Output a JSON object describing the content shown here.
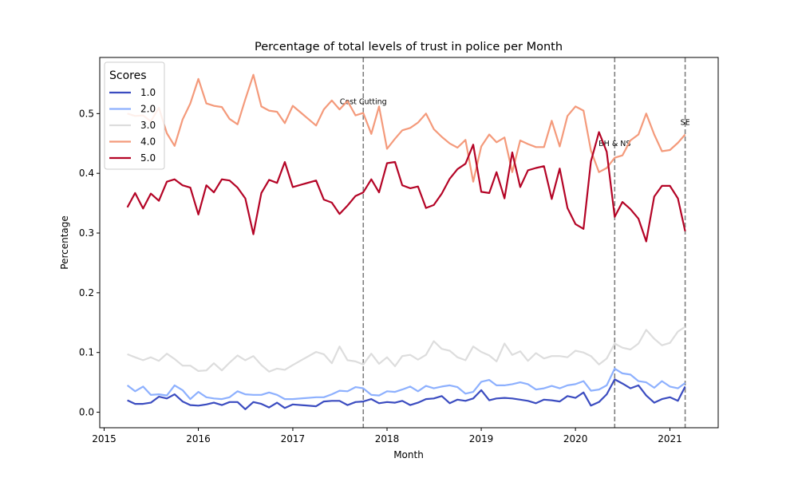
{
  "chart_data": {
    "type": "line",
    "title": "Percentage of total levels of trust in police per Month",
    "xlabel": "Month",
    "ylabel": "Percentage",
    "x_axis_kind": "date",
    "xlim": [
      "2014-12-15",
      "2021-07-07"
    ],
    "ylim": [
      -0.026,
      0.594
    ],
    "x_ticks": [
      {
        "date": "2015-01-01",
        "label": "2015"
      },
      {
        "date": "2016-01-01",
        "label": "2016"
      },
      {
        "date": "2017-01-01",
        "label": "2017"
      },
      {
        "date": "2018-01-01",
        "label": "2018"
      },
      {
        "date": "2019-01-01",
        "label": "2019"
      },
      {
        "date": "2020-01-01",
        "label": "2020"
      },
      {
        "date": "2021-01-01",
        "label": "2021"
      }
    ],
    "y_ticks": [
      {
        "value": 0.0,
        "label": "0.0"
      },
      {
        "value": 0.1,
        "label": "0.1"
      },
      {
        "value": 0.2,
        "label": "0.2"
      },
      {
        "value": 0.3,
        "label": "0.3"
      },
      {
        "value": 0.4,
        "label": "0.4"
      },
      {
        "value": 0.5,
        "label": "0.5"
      }
    ],
    "grid": false,
    "legend": {
      "title": "Scores",
      "placement": "upper-left"
    },
    "annotations": [
      {
        "date": "2017-10-01",
        "label": "Cost Cutting",
        "y": 0.52
      },
      {
        "date": "2020-06-01",
        "label": "BH & NS",
        "y": 0.45
      },
      {
        "date": "2021-03-01",
        "label": "SE",
        "y": 0.485
      }
    ],
    "x": [
      "2015-04",
      "2015-05",
      "2015-06",
      "2015-07",
      "2015-08",
      "2015-09",
      "2015-10",
      "2015-11",
      "2015-12",
      "2016-01",
      "2016-02",
      "2016-03",
      "2016-04",
      "2016-05",
      "2016-06",
      "2016-07",
      "2016-08",
      "2016-09",
      "2016-10",
      "2016-11",
      "2016-12",
      "2017-01",
      "2017-02",
      "2017-03",
      "2017-04",
      "2017-05",
      "2017-06",
      "2017-07",
      "2017-08",
      "2017-09",
      "2017-10",
      "2017-11",
      "2017-12",
      "2018-01",
      "2018-02",
      "2018-03",
      "2018-04",
      "2018-05",
      "2018-06",
      "2018-07",
      "2018-08",
      "2018-09",
      "2018-10",
      "2018-11",
      "2018-12",
      "2019-01",
      "2019-02",
      "2019-03",
      "2019-04",
      "2019-05",
      "2019-06",
      "2019-07",
      "2019-08",
      "2019-09",
      "2019-10",
      "2019-11",
      "2019-12",
      "2020-01",
      "2020-02",
      "2020-03",
      "2020-04",
      "2020-05",
      "2020-06",
      "2020-07",
      "2020-08",
      "2020-09",
      "2020-10",
      "2020-11",
      "2020-12",
      "2021-01",
      "2021-02",
      "2021-03"
    ],
    "series": [
      {
        "name": "1.0",
        "color": "#3b4cc0",
        "values": [
          0.02,
          0.014,
          0.014,
          0.016,
          0.026,
          0.023,
          0.03,
          0.018,
          0.012,
          0.011,
          0.013,
          0.016,
          0.012,
          0.017,
          0.017,
          0.005,
          0.017,
          0.014,
          0.008,
          0.016,
          0.007,
          0.013,
          null,
          null,
          0.01,
          0.018,
          0.019,
          0.019,
          0.012,
          0.017,
          0.018,
          0.022,
          0.015,
          0.017,
          0.016,
          0.019,
          0.012,
          0.016,
          0.022,
          0.023,
          0.027,
          0.015,
          0.021,
          0.019,
          0.023,
          0.037,
          0.02,
          0.023,
          0.024,
          0.023,
          0.021,
          0.019,
          0.015,
          0.021,
          0.02,
          0.018,
          0.027,
          0.024,
          0.033,
          0.011,
          0.017,
          0.03,
          0.055,
          0.048,
          0.04,
          0.045,
          0.028,
          0.016,
          0.022,
          0.025,
          0.019,
          0.043
        ]
      },
      {
        "name": "2.0",
        "color": "#8db0fe",
        "values": [
          0.045,
          0.035,
          0.043,
          0.029,
          0.03,
          0.028,
          0.045,
          0.037,
          0.022,
          0.034,
          0.025,
          0.023,
          0.022,
          0.025,
          0.035,
          0.03,
          0.029,
          0.029,
          0.033,
          0.029,
          0.022,
          0.022,
          null,
          null,
          0.025,
          0.025,
          0.03,
          0.036,
          0.035,
          0.042,
          0.04,
          0.029,
          0.028,
          0.035,
          0.034,
          0.038,
          0.043,
          0.035,
          0.044,
          0.04,
          0.043,
          0.045,
          0.042,
          0.031,
          0.034,
          0.051,
          0.054,
          0.045,
          0.045,
          0.047,
          0.05,
          0.047,
          0.038,
          0.04,
          0.044,
          0.04,
          0.045,
          0.047,
          0.052,
          0.036,
          0.038,
          0.045,
          0.073,
          0.065,
          0.063,
          0.052,
          0.05,
          0.041,
          0.052,
          0.043,
          0.04,
          0.049
        ]
      },
      {
        "name": "3.0",
        "color": "#dddddd",
        "values": [
          0.097,
          0.092,
          0.087,
          0.092,
          0.086,
          0.098,
          0.089,
          0.078,
          0.078,
          0.069,
          0.07,
          0.082,
          0.07,
          0.083,
          0.095,
          0.087,
          0.094,
          0.079,
          0.068,
          0.073,
          0.071,
          0.079,
          null,
          null,
          0.101,
          0.097,
          0.082,
          0.11,
          0.087,
          0.085,
          0.08,
          0.098,
          0.081,
          0.092,
          0.077,
          0.094,
          0.096,
          0.088,
          0.096,
          0.119,
          0.106,
          0.103,
          0.092,
          0.087,
          0.11,
          0.101,
          0.095,
          0.085,
          0.115,
          0.096,
          0.102,
          0.086,
          0.099,
          0.09,
          0.094,
          0.094,
          0.092,
          0.103,
          0.1,
          0.094,
          0.08,
          0.09,
          0.115,
          0.108,
          0.105,
          0.115,
          0.138,
          0.123,
          0.112,
          0.116,
          0.135,
          0.143
        ]
      },
      {
        "name": "4.0",
        "color": "#f49a7b",
        "values": [
          0.5,
          0.496,
          0.497,
          0.487,
          0.51,
          0.467,
          0.446,
          0.49,
          0.517,
          0.558,
          0.517,
          0.513,
          0.511,
          0.491,
          0.482,
          0.524,
          0.565,
          0.512,
          0.505,
          0.503,
          0.484,
          0.513,
          null,
          null,
          0.48,
          0.507,
          0.522,
          0.507,
          0.521,
          0.497,
          0.501,
          0.466,
          0.512,
          0.441,
          0.458,
          0.472,
          0.476,
          0.485,
          0.5,
          0.474,
          0.461,
          0.45,
          0.443,
          0.456,
          0.386,
          0.445,
          0.465,
          0.452,
          0.46,
          0.402,
          0.455,
          0.449,
          0.444,
          0.444,
          0.488,
          0.445,
          0.496,
          0.512,
          0.505,
          0.438,
          0.402,
          0.409,
          0.426,
          0.43,
          0.455,
          0.465,
          0.5,
          0.465,
          0.437,
          0.439,
          0.451,
          0.465
        ]
      },
      {
        "name": "5.0",
        "color": "#b40426",
        "values": [
          0.343,
          0.367,
          0.341,
          0.366,
          0.354,
          0.386,
          0.39,
          0.38,
          0.376,
          0.331,
          0.38,
          0.368,
          0.39,
          0.388,
          0.376,
          0.358,
          0.298,
          0.367,
          0.389,
          0.384,
          0.419,
          0.377,
          null,
          null,
          0.388,
          0.356,
          0.351,
          0.332,
          0.346,
          0.362,
          0.368,
          0.39,
          0.368,
          0.417,
          0.419,
          0.38,
          0.375,
          0.378,
          0.342,
          0.347,
          0.366,
          0.391,
          0.407,
          0.416,
          0.448,
          0.369,
          0.367,
          0.402,
          0.358,
          0.435,
          0.377,
          0.405,
          0.409,
          0.412,
          0.357,
          0.408,
          0.342,
          0.315,
          0.307,
          0.42,
          0.469,
          0.436,
          0.327,
          0.352,
          0.34,
          0.324,
          0.286,
          0.361,
          0.379,
          0.379,
          0.358,
          0.303
        ]
      }
    ]
  }
}
